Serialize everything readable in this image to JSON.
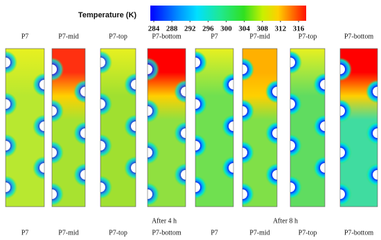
{
  "colorbar": {
    "title": "Temperature (K)",
    "ticks": [
      284,
      288,
      292,
      296,
      300,
      304,
      308,
      312,
      316
    ]
  },
  "top_labels": [
    "P7",
    "P7-mid",
    "P7-top",
    "P7-bottom",
    "P7",
    "P7-mid",
    "P7-top",
    "P7-bottom"
  ],
  "captions": [
    "After 4 h",
    "After 8 h"
  ],
  "bottom_labels": [
    "P7",
    "P7-mid",
    "P7-top",
    "P7-bottom",
    "P7",
    "P7-mid",
    "P7-top",
    "P7-bottom"
  ]
}
